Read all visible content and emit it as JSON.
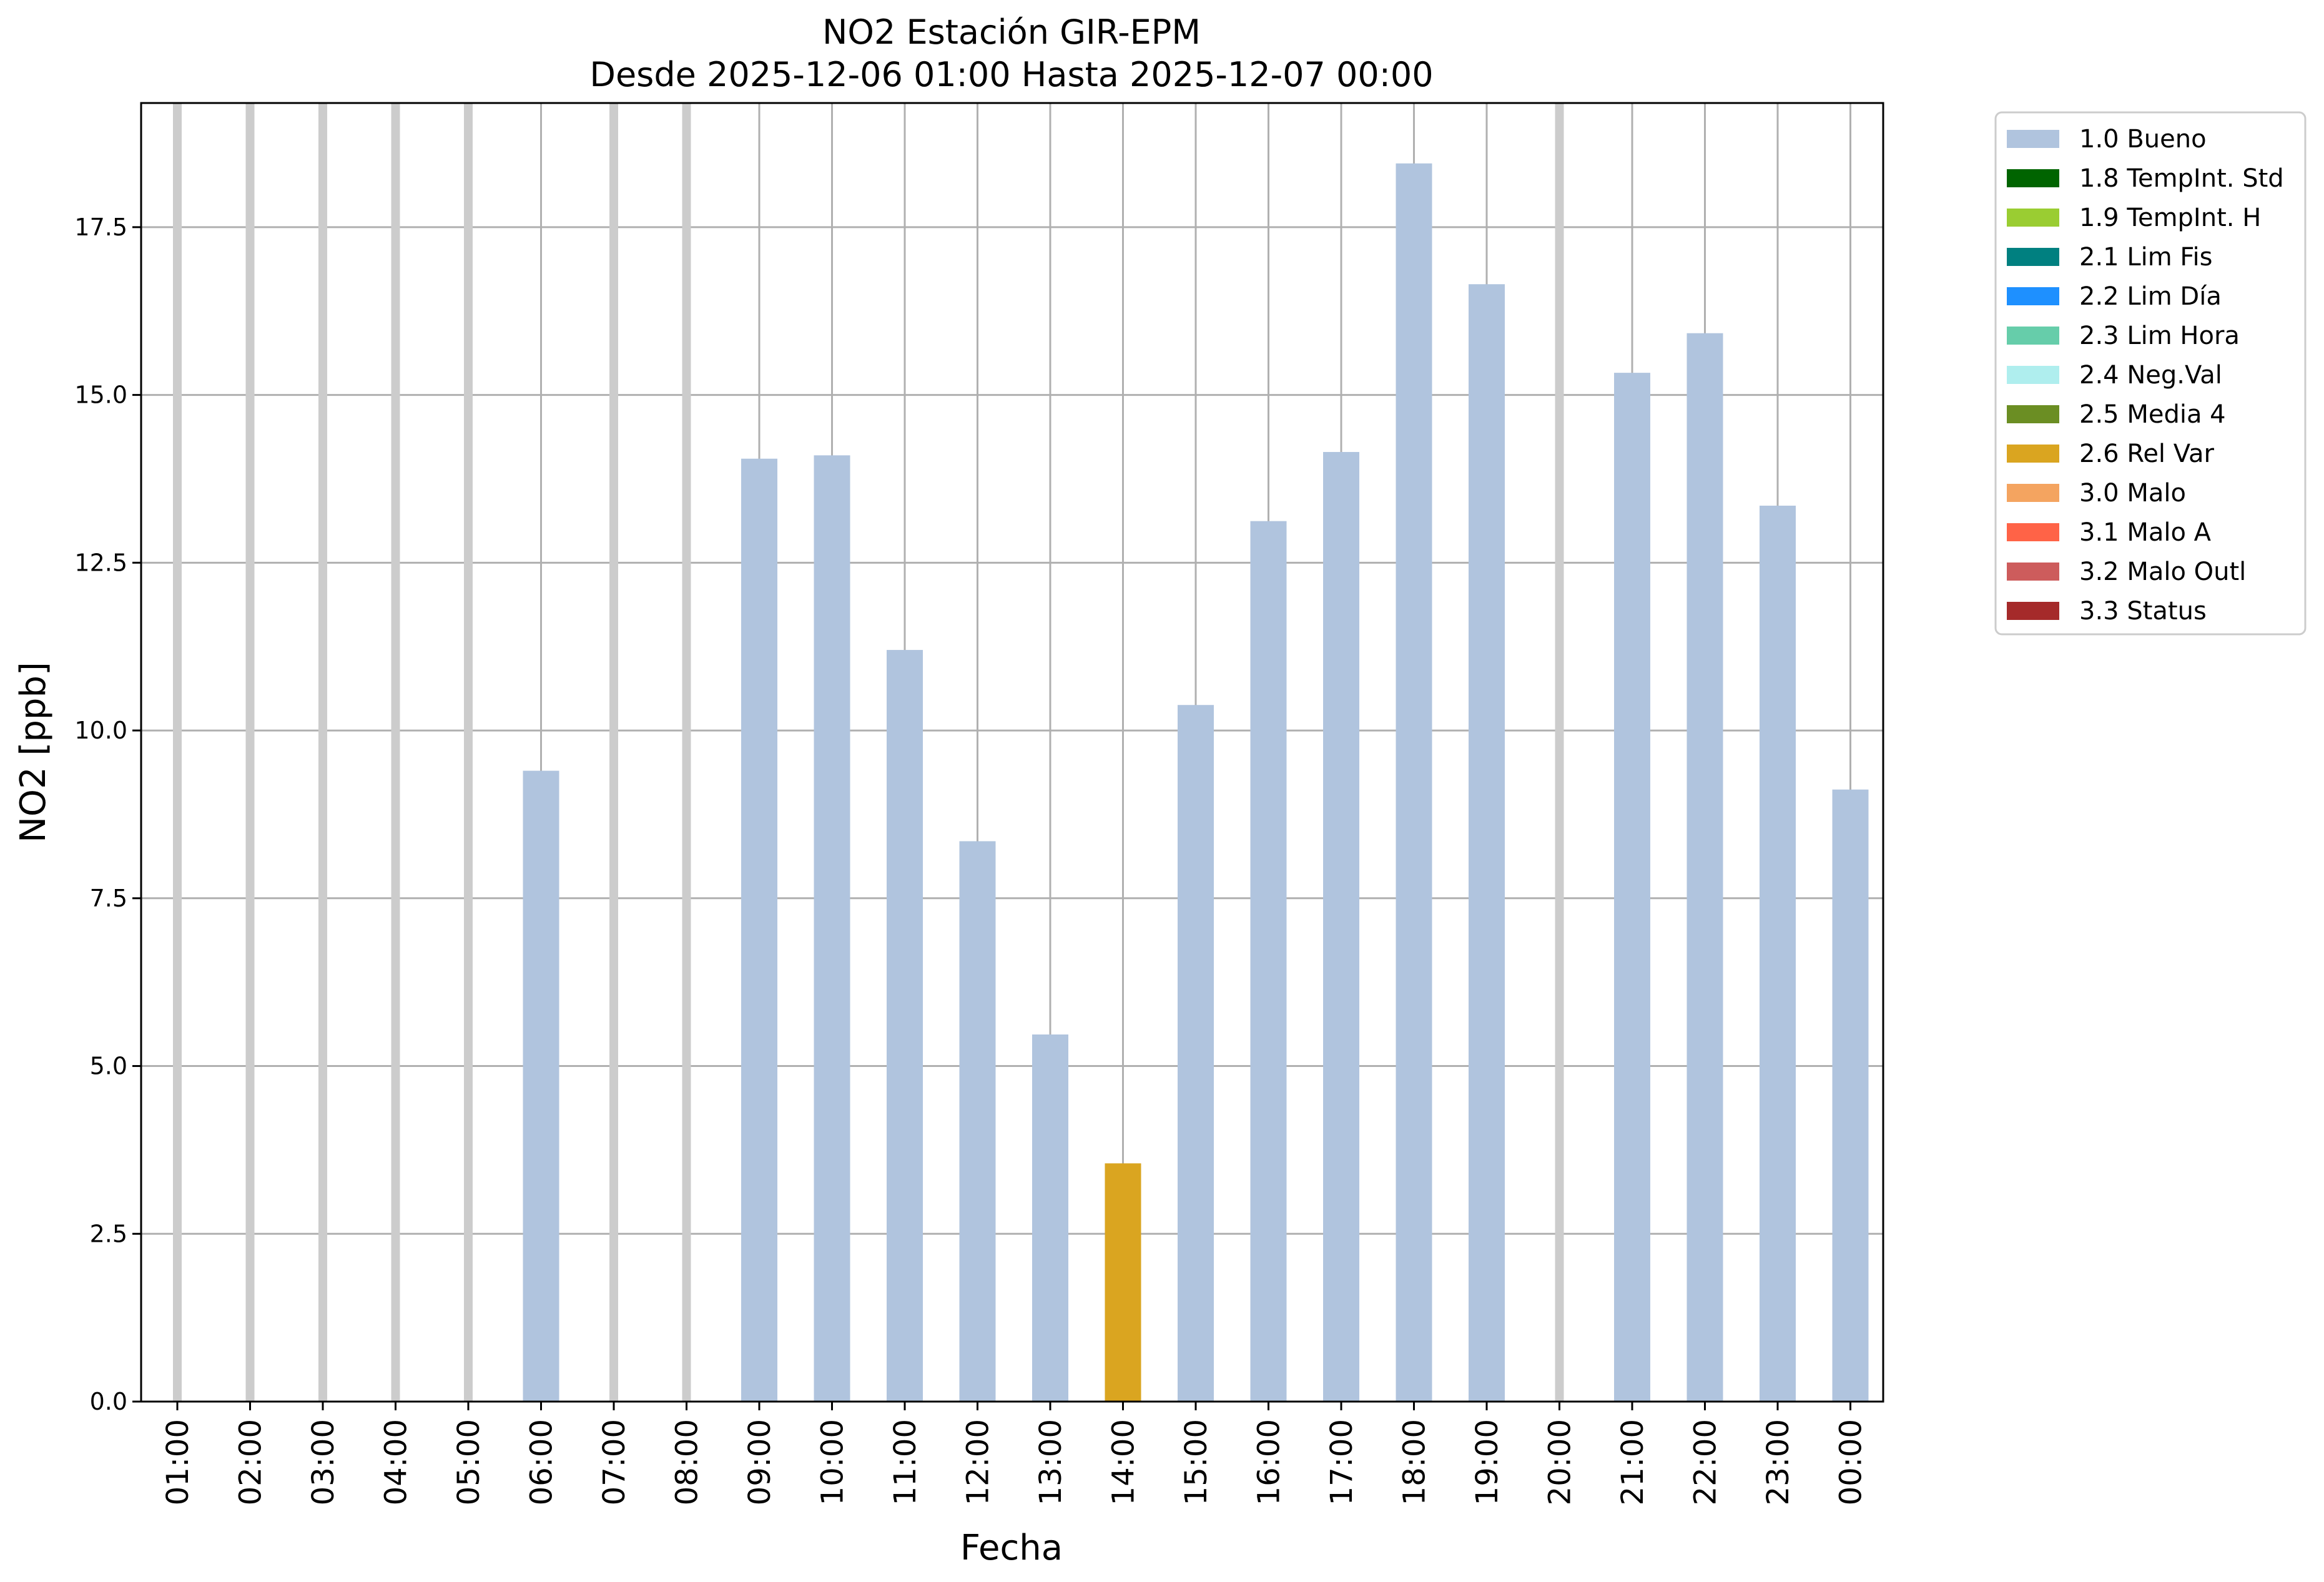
{
  "chart_data": {
    "type": "bar",
    "title": "NO2 Estación GIR-EPM",
    "subtitle": "Desde 2025-12-06 01:00 Hasta 2025-12-07 00:00",
    "xlabel": "Fecha",
    "ylabel": "NO2 [ppb]",
    "ylim": [
      0,
      19.35
    ],
    "yticks": [
      "0.0",
      "2.5",
      "5.0",
      "7.5",
      "10.0",
      "12.5",
      "15.0",
      "17.5"
    ],
    "ytick_values": [
      0,
      2.5,
      5,
      7.5,
      10,
      12.5,
      15,
      17.5
    ],
    "grid": true,
    "legend_position": "outside top-right",
    "categories": [
      "01:00",
      "02:00",
      "03:00",
      "04:00",
      "05:00",
      "06:00",
      "07:00",
      "08:00",
      "09:00",
      "10:00",
      "11:00",
      "12:00",
      "13:00",
      "14:00",
      "15:00",
      "16:00",
      "17:00",
      "18:00",
      "19:00",
      "20:00",
      "21:00",
      "22:00",
      "23:00",
      "00:00"
    ],
    "values": [
      null,
      null,
      null,
      null,
      null,
      9.4,
      null,
      null,
      14.05,
      14.1,
      11.2,
      8.35,
      5.47,
      3.55,
      10.38,
      13.12,
      14.15,
      18.45,
      16.65,
      null,
      15.33,
      15.92,
      13.35,
      9.12
    ],
    "flags": [
      "",
      "",
      "",
      "",
      "",
      "1.0 Bueno",
      "",
      "",
      "1.0 Bueno",
      "1.0 Bueno",
      "1.0 Bueno",
      "1.0 Bueno",
      "1.0 Bueno",
      "2.6 Rel Var",
      "1.0 Bueno",
      "1.0 Bueno",
      "1.0 Bueno",
      "1.0 Bueno",
      "1.0 Bueno",
      "",
      "1.0 Bueno",
      "1.0 Bueno",
      "1.0 Bueno",
      "1.0 Bueno"
    ],
    "missing_marker_color": "#cccccc",
    "legend": [
      {
        "label": "1.0 Bueno",
        "color": "#b0c4de"
      },
      {
        "label": "1.8 TempInt. Std",
        "color": "#006400"
      },
      {
        "label": "1.9 TempInt. H",
        "color": "#9acd32"
      },
      {
        "label": "2.1 Lim Fis",
        "color": "#008080"
      },
      {
        "label": "2.2 Lim Día",
        "color": "#1e90ff"
      },
      {
        "label": "2.3 Lim Hora",
        "color": "#66cdaa"
      },
      {
        "label": "2.4 Neg.Val",
        "color": "#afeeee"
      },
      {
        "label": "2.5 Media 4",
        "color": "#6b8e23"
      },
      {
        "label": "2.6 Rel Var",
        "color": "#daa520"
      },
      {
        "label": "3.0 Malo",
        "color": "#f4a460"
      },
      {
        "label": "3.1 Malo A",
        "color": "#ff6347"
      },
      {
        "label": "3.2 Malo Outl",
        "color": "#cd5c5c"
      },
      {
        "label": "3.3 Status",
        "color": "#a52a2a"
      }
    ]
  }
}
